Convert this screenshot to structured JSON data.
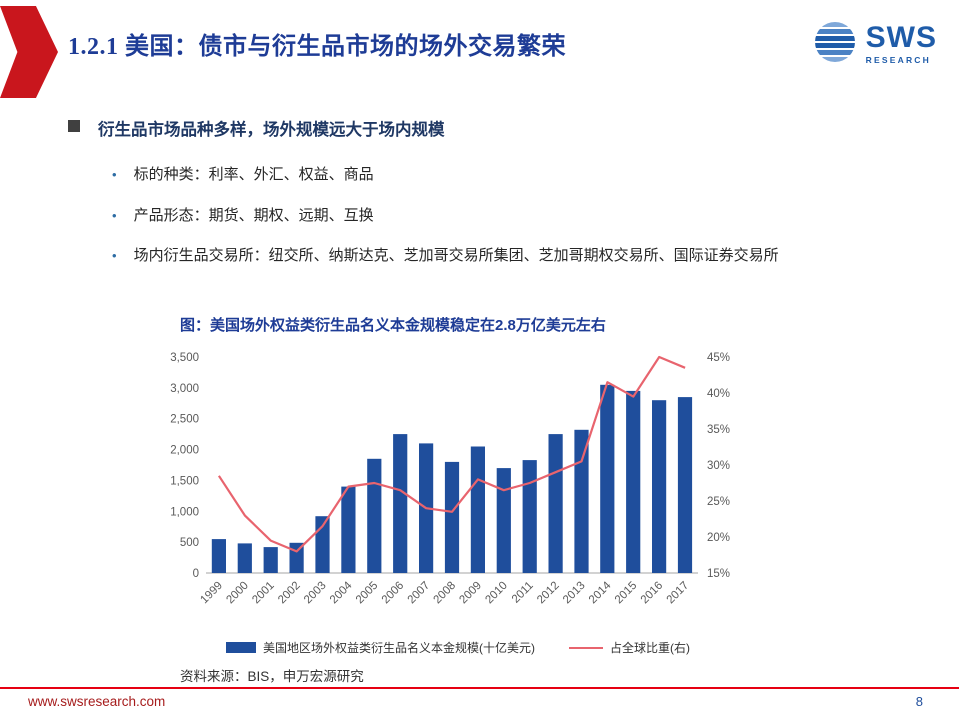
{
  "colors": {
    "ribbon_red": "#C9161D",
    "title_blue": "#1E3C96",
    "heading_navy": "#1F3864",
    "bar_blue": "#1F4E9C",
    "line_red": "#E8646E",
    "footer_red": "#E60012",
    "url_red": "#A61C1C",
    "logo_blue": "#1F5CA9",
    "axis_gray": "#595959"
  },
  "header": {
    "title": "1.2.1 美国：债市与衍生品市场的场外交易繁荣",
    "logo_text": "SWS",
    "logo_subtext": "RESEARCH"
  },
  "content": {
    "heading": "衍生品市场品种多样，场外规模远大于场内规模",
    "bullets": [
      "标的种类：利率、外汇、权益、商品",
      "产品形态：期货、期权、远期、互换",
      "场内衍生品交易所：纽交所、纳斯达克、芝加哥交易所集团、芝加哥期权交易所、国际证券交易所"
    ]
  },
  "chart": {
    "title": "图：美国场外权益类衍生品名义本金规模稳定在2.8万亿美元左右",
    "source": "资料来源：BIS，申万宏源研究"
  },
  "chart_data": {
    "type": "bar",
    "subtype": "bar+line combo, dual axis",
    "title": "图：美国场外权益类衍生品名义本金规模稳定在2.8万亿美元左右",
    "categories": [
      "1999",
      "2000",
      "2001",
      "2002",
      "2003",
      "2004",
      "2005",
      "2006",
      "2007",
      "2008",
      "2009",
      "2010",
      "2011",
      "2012",
      "2013",
      "2014",
      "2015",
      "2016",
      "2017"
    ],
    "series": [
      {
        "name": "美国地区场外权益类衍生品名义本金规模(十亿美元)",
        "type": "bar",
        "axis": "left",
        "values": [
          550,
          480,
          420,
          490,
          920,
          1400,
          1850,
          2250,
          2100,
          1800,
          2050,
          1700,
          1830,
          2250,
          2320,
          3050,
          2950,
          2800,
          2850
        ]
      },
      {
        "name": "占全球比重(右)",
        "type": "line",
        "axis": "right",
        "values": [
          28.5,
          23,
          19.5,
          18,
          21.5,
          27,
          27.5,
          26.5,
          24,
          23.5,
          28,
          26.5,
          27.5,
          29,
          30.5,
          41.5,
          39.5,
          45,
          43.5
        ]
      }
    ],
    "left_axis": {
      "min": 0,
      "max": 3500,
      "step": 500
    },
    "right_axis": {
      "min": 15,
      "max": 45,
      "step": 5,
      "suffix": "%"
    },
    "grid": false,
    "legend_position": "bottom"
  },
  "footer": {
    "url": "www.swsresearch.com",
    "page": "8"
  }
}
